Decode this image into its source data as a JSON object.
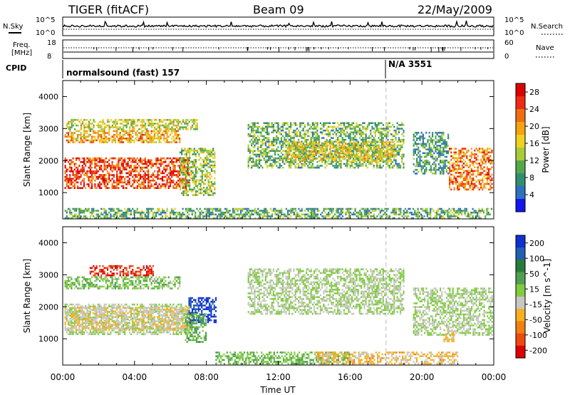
{
  "header": {
    "title": "TIGER (fitACF)",
    "beam": "Beam 09",
    "date": "22/May/2009"
  },
  "summary_panels": {
    "left_labels": [
      "N.Sky",
      "Freq.",
      "[MHz]",
      "CPID"
    ],
    "right_labels": [
      "N.Search",
      "Nave"
    ],
    "nsky_ticks": [
      "10^5",
      "10^0"
    ],
    "nsearch_ticks": [
      "10^5",
      "10^0"
    ],
    "freq_ticks": [
      "18",
      "8"
    ],
    "nave_ticks": [
      "60",
      "0"
    ],
    "cpid_segments": [
      {
        "label": "normalsound (fast) 157",
        "start_hour": 0
      },
      {
        "label": "N/A 3551",
        "start_hour": 18
      }
    ]
  },
  "chart_data": [
    {
      "type": "heatmap",
      "name": "power",
      "ylabel": "Slant Range [km]",
      "xlabel": "",
      "xlim": [
        0,
        24
      ],
      "ylim": [
        180,
        4500
      ],
      "yticks": [
        "1000",
        "2000",
        "3000",
        "4000"
      ],
      "colorbar": {
        "label": "Power [dB]",
        "ticks": [
          "4",
          "8",
          "12",
          "16",
          "20",
          "24",
          "28"
        ],
        "range": [
          0,
          30
        ],
        "colors": [
          "#1515ee",
          "#2f6fc0",
          "#2f9070",
          "#55a84a",
          "#a8cc38",
          "#f0d020",
          "#f5a410",
          "#f06e10",
          "#ee2a10",
          "#dd0000"
        ]
      },
      "regions": [
        {
          "x0": 0.1,
          "x1": 7.0,
          "y0": 1150,
          "y1": 2100,
          "level": 25
        },
        {
          "x0": 0.1,
          "x1": 6.5,
          "y0": 2550,
          "y1": 2950,
          "level": 19
        },
        {
          "x0": 0.2,
          "x1": 7.5,
          "y0": 3000,
          "y1": 3300,
          "level": 15
        },
        {
          "x0": 6.5,
          "x1": 8.5,
          "y0": 900,
          "y1": 2400,
          "level": 13
        },
        {
          "x0": 10.3,
          "x1": 19.0,
          "y0": 1800,
          "y1": 3200,
          "level": 11
        },
        {
          "x0": 12.5,
          "x1": 18.5,
          "y0": 2000,
          "y1": 2600,
          "level": 16
        },
        {
          "x0": 19.5,
          "x1": 21.5,
          "y0": 1600,
          "y1": 2900,
          "level": 9
        },
        {
          "x0": 21.5,
          "x1": 23.9,
          "y0": 1100,
          "y1": 2400,
          "level": 22
        },
        {
          "x0": 0.1,
          "x1": 23.9,
          "y0": 200,
          "y1": 520,
          "level": 10
        }
      ]
    },
    {
      "type": "heatmap",
      "name": "velocity",
      "ylabel": "Slant Range [km]",
      "xlabel": "Time UT",
      "xlim": [
        0,
        24
      ],
      "ylim": [
        180,
        4500
      ],
      "yticks": [
        "1000",
        "2000",
        "3000",
        "4000"
      ],
      "xticks": [
        "00:00",
        "04:00",
        "08:00",
        "12:00",
        "16:00",
        "20:00",
        "00:00"
      ],
      "colorbar": {
        "label": "Velocity [m s^-1]",
        "ticks": [
          "200",
          "100",
          "50",
          "15",
          "-15",
          "-50",
          "-100",
          "-200"
        ],
        "range": [
          -250,
          250
        ],
        "colors": [
          "#1030d0",
          "#2060b0",
          "#2a7a3a",
          "#50a050",
          "#80cc40",
          "#c8c8c0",
          "#f6b020",
          "#f08010",
          "#ee4a10",
          "#dd0000"
        ]
      },
      "regions": [
        {
          "x0": 0.1,
          "x1": 7.0,
          "y0": 1150,
          "y1": 2100,
          "level": 0
        },
        {
          "x0": 0.1,
          "x1": 7.0,
          "y0": 1250,
          "y1": 2000,
          "level": -40
        },
        {
          "x0": 0.1,
          "x1": 6.5,
          "y0": 2550,
          "y1": 2950,
          "level": 30
        },
        {
          "x0": 1.5,
          "x1": 5.0,
          "y0": 3000,
          "y1": 3300,
          "level": -200
        },
        {
          "x0": 7.0,
          "x1": 8.5,
          "y0": 1500,
          "y1": 2300,
          "level": 220
        },
        {
          "x0": 6.8,
          "x1": 8.0,
          "y0": 900,
          "y1": 1800,
          "level": 60
        },
        {
          "x0": 10.3,
          "x1": 19.0,
          "y0": 1800,
          "y1": 3200,
          "level": 0
        },
        {
          "x0": 19.5,
          "x1": 23.9,
          "y0": 1100,
          "y1": 2600,
          "level": 0
        },
        {
          "x0": 21.2,
          "x1": 21.8,
          "y0": 950,
          "y1": 1300,
          "level": -60
        },
        {
          "x0": 8.5,
          "x1": 16.0,
          "y0": 200,
          "y1": 600,
          "level": 50
        },
        {
          "x0": 14.0,
          "x1": 22.0,
          "y0": 200,
          "y1": 600,
          "level": -60
        }
      ]
    }
  ]
}
